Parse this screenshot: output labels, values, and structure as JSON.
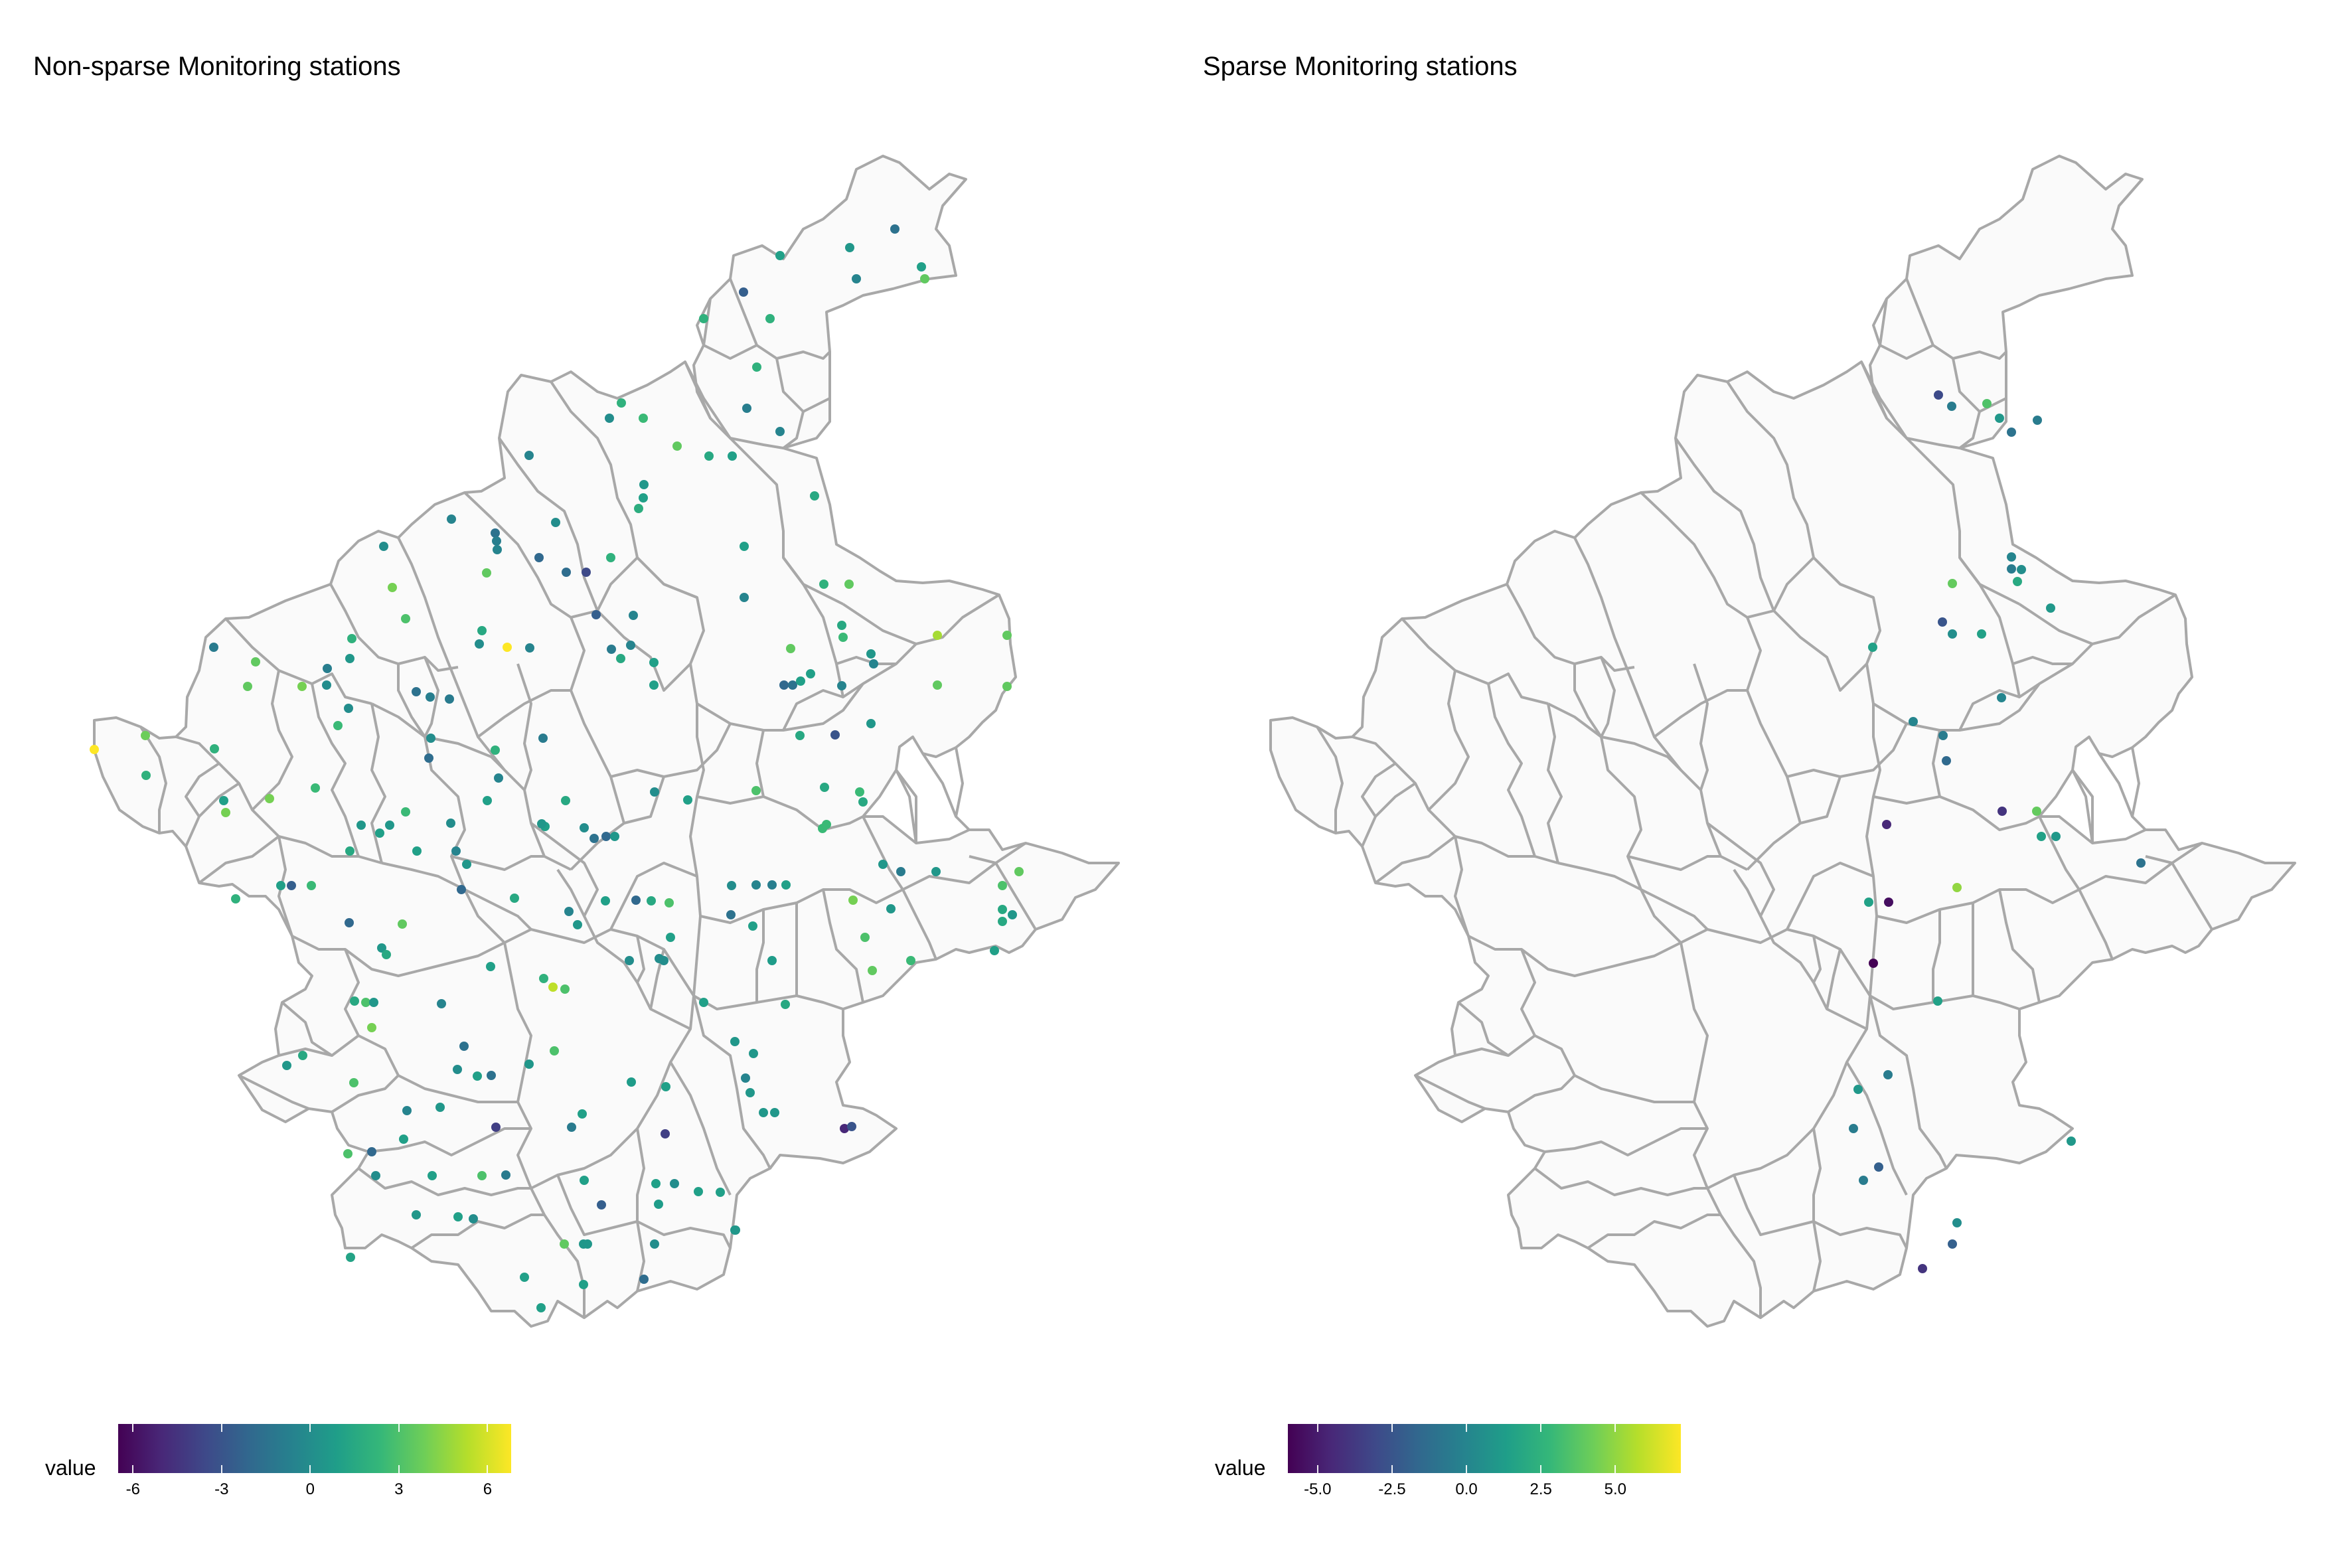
{
  "panels": [
    {
      "title": "Non-sparse Monitoring stations",
      "legend": {
        "title": "value",
        "range": [
          -6.5,
          6.8
        ],
        "ticks": [
          -6,
          -3,
          0,
          3,
          6
        ],
        "tick_labels": [
          "-6",
          "-3",
          "0",
          "3",
          "6"
        ]
      }
    },
    {
      "title": "Sparse Monitoring stations",
      "legend": {
        "title": "value",
        "range": [
          -6.0,
          7.2
        ],
        "ticks": [
          -5,
          -2.5,
          0,
          2.5,
          5
        ],
        "tick_labels": [
          "-5.0",
          "-2.5",
          "0.0",
          "2.5",
          "5.0"
        ]
      }
    }
  ],
  "colors": {
    "background": "#ffffff",
    "region_fill": "#fafafa",
    "region_stroke": "#a8a8a8",
    "scale": [
      "#440154",
      "#482878",
      "#3e4989",
      "#31688e",
      "#26828e",
      "#1f9e89",
      "#35b779",
      "#6ece58",
      "#b5de2b",
      "#fde725"
    ]
  }
}
